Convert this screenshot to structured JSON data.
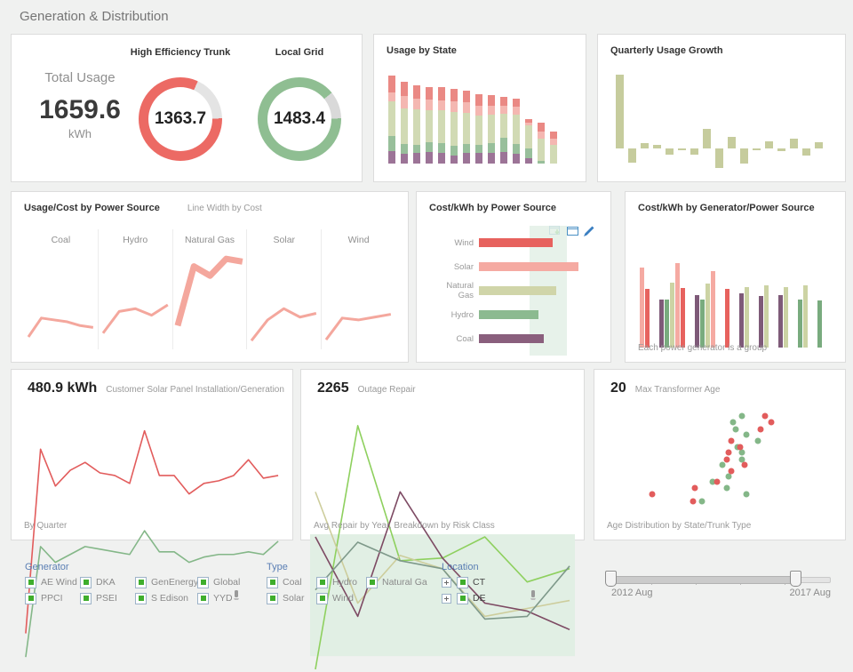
{
  "page": {
    "title": "Generation & Distribution"
  },
  "kpis": {
    "total": {
      "label": "Total Usage",
      "value": "1659.6",
      "unit": "kWh"
    },
    "solar": {
      "value": "480.9 kWh",
      "label": "Customer Solar Panel Installation/Generation",
      "footer": "By Quarter"
    },
    "outage": {
      "value": "2265",
      "label": "Outage Repair",
      "footer": "Avg Repair by Year, Breakdown by Risk Class"
    },
    "transformer": {
      "value": "20",
      "label": "Max Transformer Age",
      "footer": "Age Distribution by State/Trunk Type"
    }
  },
  "panel_titles": {
    "usage_by_state": "Usage by State",
    "quarterly": "Quarterly Usage Growth",
    "usage_cost": "Usage/Cost by Power Source",
    "usage_cost_sub": "Line Width by Cost",
    "cost_by_source": "Cost/kWh by Power Source",
    "cost_by_generator": "Cost/kWh by Generator/Power Source",
    "cost_by_generator_caption": "Each power generator is a group"
  },
  "filters": {
    "generator": {
      "label": "Generator",
      "columns": [
        [
          "AE Wind",
          "PPCI"
        ],
        [
          "DKA",
          "PSEI"
        ],
        [
          "GenEnergy",
          "S Edison"
        ],
        [
          "Global",
          "YYD"
        ]
      ]
    },
    "type": {
      "label": "Type",
      "columns": [
        [
          "Coal",
          "Solar"
        ],
        [
          "Hydro",
          "Wind"
        ],
        [
          "Natural Ga"
        ]
      ]
    },
    "location": {
      "label": "Location",
      "items": [
        "CT",
        "DE"
      ]
    }
  },
  "slider": {
    "start": "2012 Aug",
    "end": "2017 Aug"
  },
  "chart_data": [
    {
      "id": "trunk",
      "type": "donut",
      "title": "High Efficiency Trunk",
      "value": 1363.7,
      "max": 1659.6,
      "color": "#ec6a64",
      "track": "#e4e4e4"
    },
    {
      "id": "grid",
      "type": "donut",
      "title": "Local Grid",
      "value": 1483.4,
      "max": 1659.6,
      "color": "#8fbe92",
      "track": "#d9d9d9"
    },
    {
      "id": "usage_by_state",
      "type": "bar",
      "stacked": true,
      "title": "Usage by State",
      "segment_order": [
        "purple",
        "green",
        "olive",
        "pink",
        "red"
      ],
      "colors": [
        "#94688e",
        "#8fba93",
        "#cdd7ae",
        "#f3b1aa",
        "#e87f79"
      ],
      "bars": [
        [
          16,
          19,
          43,
          12,
          21
        ],
        [
          12,
          13,
          45,
          15,
          18
        ],
        [
          13,
          11,
          44,
          14,
          17
        ],
        [
          15,
          12,
          40,
          14,
          15
        ],
        [
          14,
          12,
          41,
          13,
          16
        ],
        [
          10,
          13,
          42,
          14,
          15
        ],
        [
          13,
          12,
          39,
          13,
          15
        ],
        [
          13,
          11,
          37,
          12,
          14
        ],
        [
          14,
          12,
          36,
          11,
          13
        ],
        [
          15,
          17,
          31,
          10,
          11
        ],
        [
          12,
          13,
          37,
          10,
          10
        ],
        [
          7,
          12,
          29,
          4,
          4
        ],
        [
          0,
          3,
          28,
          9,
          12
        ],
        [
          0,
          0,
          24,
          7,
          9
        ]
      ]
    },
    {
      "id": "quarterly",
      "type": "bar",
      "title": "Quarterly Usage Growth",
      "color": "#c6cc9d",
      "values": [
        100,
        -19,
        7,
        5,
        -8,
        -2,
        -9,
        27,
        -26,
        16,
        -20,
        -2,
        10,
        -4,
        13,
        -10,
        8
      ]
    },
    {
      "id": "usage_cost",
      "type": "line",
      "title": "Usage/Cost by Power Source",
      "subtitle": "Line Width by Cost",
      "color": "#f4a79d",
      "panels": [
        {
          "name": "Coal",
          "values": [
            10,
            30,
            28,
            26,
            22,
            20
          ],
          "width": 3
        },
        {
          "name": "Hydro",
          "values": [
            14,
            37,
            40,
            33,
            44
          ],
          "width": 3
        },
        {
          "name": "Natural Gas",
          "values": [
            22,
            85,
            75,
            93,
            90
          ],
          "width": 7
        },
        {
          "name": "Solar",
          "values": [
            6,
            28,
            40,
            31,
            35
          ],
          "width": 3
        },
        {
          "name": "Wind",
          "values": [
            7,
            30,
            28,
            31,
            34
          ],
          "width": 3
        }
      ]
    },
    {
      "id": "cost_by_source",
      "type": "bar",
      "orientation": "horizontal",
      "title": "Cost/kWh by Power Source",
      "categories": [
        "Wind",
        "Solar",
        "Natural Gas",
        "Hydro",
        "Coal"
      ],
      "values": [
        74,
        100,
        78,
        60,
        65
      ],
      "colors": [
        "#e7625e",
        "#f5aaa2",
        "#d0d5a9",
        "#8cba90",
        "#8a5f7d"
      ],
      "band": [
        51,
        88
      ],
      "band_color": "#e3f0e6"
    },
    {
      "id": "generator_groups",
      "type": "bar",
      "grouped": true,
      "title": "Cost/kWh by Generator/Power Source",
      "caption": "Each power generator is a group",
      "palette": {
        "salmon": "#f5aaa2",
        "red": "#e7625e",
        "purple": "#7e5a78",
        "green": "#79ab7e",
        "olive": "#ccd3a4"
      },
      "groups": [
        [
          [
            "salmon",
            75
          ],
          [
            "red",
            55
          ]
        ],
        [
          [
            "purple",
            45
          ],
          [
            "green",
            45
          ],
          [
            "olive",
            61
          ],
          [
            "salmon",
            79
          ],
          [
            "red",
            56
          ]
        ],
        [
          [
            "purple",
            49
          ],
          [
            "green",
            45
          ],
          [
            "olive",
            60
          ],
          [
            "salmon",
            72
          ]
        ],
        [
          [
            "red",
            55
          ]
        ],
        [
          [
            "purple",
            51
          ],
          [
            "olive",
            57
          ]
        ],
        [
          [
            "purple",
            48
          ],
          [
            "olive",
            58
          ]
        ],
        [
          [
            "purple",
            49
          ],
          [
            "olive",
            57
          ]
        ],
        [
          [
            "green",
            45
          ],
          [
            "olive",
            58
          ]
        ],
        [
          [
            "green",
            44
          ]
        ]
      ]
    },
    {
      "id": "solar_panel",
      "type": "line",
      "title": "Customer Solar Panel Installation/Generation",
      "footer": "By Quarter",
      "series": [
        {
          "name": "installation",
          "color": "#e25c5c",
          "values": [
            14,
            84,
            70,
            76,
            79,
            75,
            74,
            71,
            91,
            74,
            74,
            67,
            71,
            72,
            74,
            80,
            73,
            74
          ]
        },
        {
          "name": "generation",
          "color": "#84b788",
          "values": [
            5,
            47,
            41,
            44,
            47,
            46,
            45,
            44,
            53,
            45,
            45,
            41,
            43,
            44,
            44,
            45,
            44,
            49
          ]
        }
      ]
    },
    {
      "id": "outage",
      "type": "line",
      "title": "Outage Repair",
      "footer": "Avg Repair by Year, Breakdown by Risk Class",
      "band": [
        6,
        52
      ],
      "band_color": "#e1efe4",
      "series": [
        {
          "name": "risk-class-a",
          "color": "#8ed05e",
          "values": [
            1,
            93,
            42,
            43,
            51,
            34,
            39
          ]
        },
        {
          "name": "risk-class-b",
          "color": "#cdcd9c",
          "values": [
            68,
            26,
            44,
            39,
            21,
            24,
            27
          ]
        },
        {
          "name": "risk-class-c",
          "color": "#7d4a63",
          "values": [
            51,
            21,
            68,
            43,
            26,
            23,
            16
          ]
        },
        {
          "name": "risk-class-d",
          "color": "#7e998a",
          "values": [
            31,
            49,
            42,
            39,
            20,
            21,
            40
          ]
        }
      ]
    },
    {
      "id": "transformer_age",
      "type": "scatter",
      "title": "Age Distribution by State/Trunk Type",
      "series": [
        {
          "name": "green-trunk",
          "color": "#84b788",
          "points": [
            [
              60,
              10
            ],
            [
              56,
              16
            ],
            [
              57,
              22
            ],
            [
              62,
              27
            ],
            [
              67,
              33
            ],
            [
              58,
              39
            ],
            [
              60,
              44
            ],
            [
              60,
              50
            ],
            [
              51,
              55
            ],
            [
              54,
              66
            ],
            [
              47,
              71
            ],
            [
              53,
              77
            ],
            [
              62,
              83
            ],
            [
              42,
              89
            ]
          ]
        },
        {
          "name": "red-trunk",
          "color": "#e25c5c",
          "points": [
            [
              70,
              10
            ],
            [
              73,
              16
            ],
            [
              68,
              22
            ],
            [
              55,
              33
            ],
            [
              59,
              39
            ],
            [
              54,
              44
            ],
            [
              53,
              50
            ],
            [
              61,
              55
            ],
            [
              55,
              61
            ],
            [
              49,
              71
            ],
            [
              39,
              77
            ],
            [
              20,
              83
            ],
            [
              38,
              89
            ]
          ]
        }
      ]
    }
  ]
}
